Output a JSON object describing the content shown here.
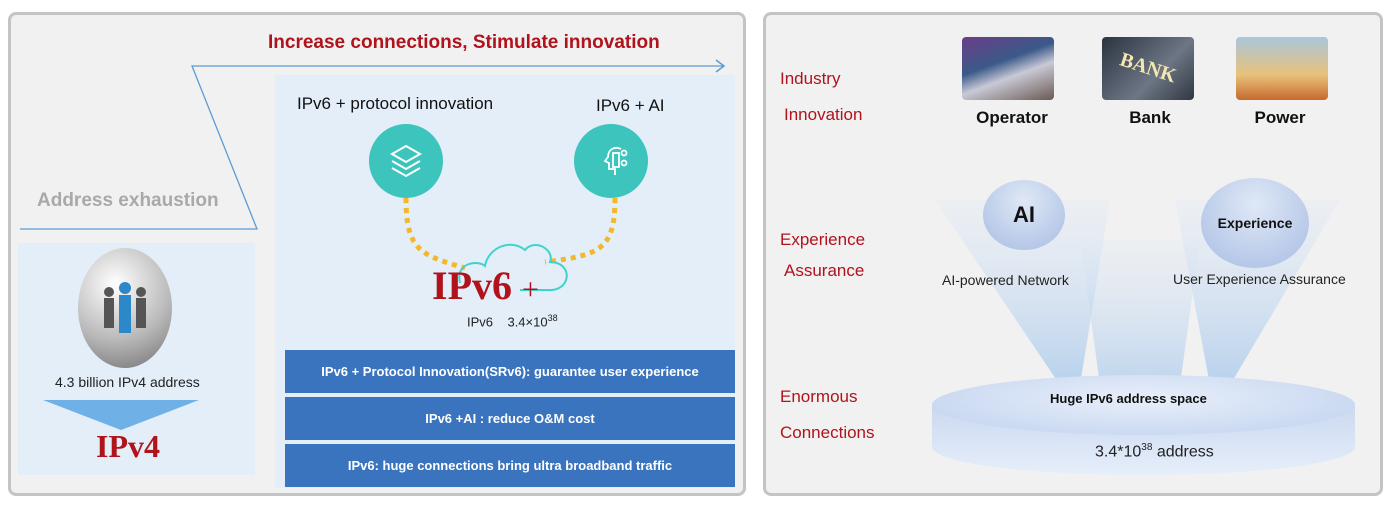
{
  "left": {
    "title": "Increase connections, Stimulate innovation",
    "address_exhaustion": "Address exhaustion",
    "ipv4_caption": "4.3 billion IPv4 address",
    "ipv4_label": "IPv4",
    "protocol_label": "IPv6 + protocol innovation",
    "ai_label": "IPv6 + AI",
    "ipv6_plus": "IPv6",
    "plus": "+",
    "ipv6_small": "IPv6",
    "ipv6_count_base": "3.4×10",
    "ipv6_count_exp": "38",
    "bars": [
      "IPv6 + Protocol Innovation(SRv6): guarantee user experience",
      "IPv6 +AI : reduce O&M cost",
      "IPv6: huge connections bring ultra broadband traffic"
    ]
  },
  "right": {
    "rows": [
      {
        "line1": "Industry",
        "line2": "Innovation"
      },
      {
        "line1": "Experience",
        "line2": "Assurance"
      },
      {
        "line1": "Enormous",
        "line2": "Connections"
      }
    ],
    "industries": [
      "Operator",
      "Bank",
      "Power"
    ],
    "bank_sign": "BANK",
    "ai_bubble": "AI",
    "ai_caption": "AI-powered Network",
    "exp_bubble": "Experience",
    "exp_caption": "User Experience Assurance",
    "disk_title": "Huge IPv6 address space",
    "disk_base": "3.4*10",
    "disk_exp": "38",
    "disk_suffix": " address"
  },
  "colors": {
    "accent_red": "#b0131b",
    "bar_blue": "#3b74be",
    "teal": "#3cc4bd",
    "dotted": "#f3b82a"
  }
}
